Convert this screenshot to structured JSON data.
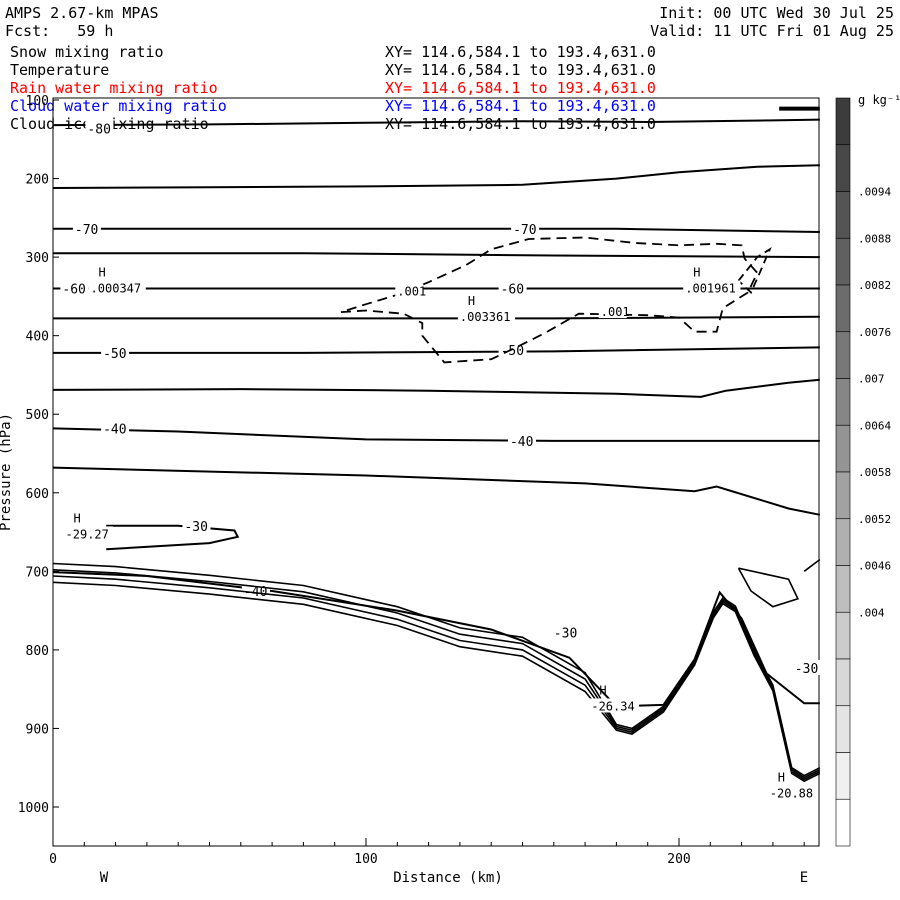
{
  "header": {
    "title": "AMPS 2.67-km MPAS",
    "forecast": "Fcst:   59 h",
    "init": "Init: 00 UTC Wed 30 Jul 25",
    "valid": "Valid: 11 UTC Fri 01 Aug 25"
  },
  "fields": [
    {
      "name": "Snow mixing ratio",
      "xy": "XY= 114.6,584.1 to 193.4,631.0",
      "color": "#000000"
    },
    {
      "name": "Temperature",
      "xy": "XY= 114.6,584.1 to 193.4,631.0",
      "color": "#000000"
    },
    {
      "name": "Rain water mixing ratio",
      "xy": "XY= 114.6,584.1 to 193.4,631.0",
      "color": "#ff0000"
    },
    {
      "name": "Cloud water mixing ratio",
      "xy": "XY= 114.6,584.1 to 193.4,631.0",
      "color": "#0000ff"
    },
    {
      "name": "Cloud ice mixing ratio",
      "xy": "XY= 114.6,584.1 to 193.4,631.0",
      "color": "#000000"
    }
  ],
  "chart_data": {
    "type": "contour cross-section",
    "xlabel": "Distance (km)",
    "ylabel": "Pressure (hPa)",
    "xlim": [
      0,
      245
    ],
    "ylim": [
      100,
      1050
    ],
    "x_ticks": [
      "0",
      "100",
      "200"
    ],
    "y_ticks": [
      "100",
      "200",
      "300",
      "400",
      "500",
      "600",
      "700",
      "800",
      "900",
      "1000"
    ],
    "west_label": "W",
    "east_label": "E",
    "colorbar": {
      "unit": "g kg⁻¹",
      "labels": [
        ".0094",
        ".0088",
        ".0082",
        ".0076",
        ".007",
        ".0064",
        ".0058",
        ".0052",
        ".0046",
        ".004"
      ],
      "shades": [
        "#3c3c3c",
        "#484848",
        "#545454",
        "#606060",
        "#6c6c6c",
        "#787878",
        "#868686",
        "#949494",
        "#a2a2a2",
        "#b0b0b0",
        "#bebebe",
        "#cccccc",
        "#d8d8d8",
        "#e4e4e4",
        "#f0f0f0",
        "#ffffff"
      ]
    },
    "temperature_contours": [
      {
        "label": "-80",
        "points": [
          [
            0,
            132
          ],
          [
            50,
            131
          ],
          [
            100,
            129
          ],
          [
            150,
            127
          ],
          [
            190,
            128
          ],
          [
            230,
            126
          ],
          [
            245,
            125
          ]
        ]
      },
      {
        "label": "",
        "points": [
          [
            0,
            212
          ],
          [
            50,
            211
          ],
          [
            100,
            210
          ],
          [
            150,
            208
          ],
          [
            180,
            200
          ],
          [
            200,
            192
          ],
          [
            225,
            185
          ],
          [
            245,
            183
          ]
        ]
      },
      {
        "label": "-70",
        "points": [
          [
            0,
            264
          ],
          [
            60,
            264
          ],
          [
            120,
            264
          ],
          [
            180,
            264
          ],
          [
            245,
            268
          ]
        ]
      },
      {
        "label": "",
        "points": [
          [
            0,
            295
          ],
          [
            80,
            295
          ],
          [
            160,
            298
          ],
          [
            245,
            300
          ]
        ]
      },
      {
        "label": "-60",
        "points": [
          [
            0,
            340
          ],
          [
            80,
            340
          ],
          [
            160,
            340
          ],
          [
            245,
            340
          ]
        ]
      },
      {
        "label": "",
        "points": [
          [
            0,
            378
          ],
          [
            80,
            378
          ],
          [
            160,
            378
          ],
          [
            245,
            376
          ]
        ]
      },
      {
        "label": "-50",
        "points": [
          [
            0,
            422
          ],
          [
            80,
            422
          ],
          [
            160,
            420
          ],
          [
            245,
            415
          ]
        ]
      },
      {
        "label": "",
        "points": [
          [
            0,
            469
          ],
          [
            60,
            468
          ],
          [
            120,
            470
          ],
          [
            180,
            474
          ],
          [
            207,
            478
          ],
          [
            215,
            470
          ],
          [
            235,
            460
          ],
          [
            245,
            456
          ]
        ]
      },
      {
        "label": "-40",
        "points": [
          [
            0,
            518
          ],
          [
            40,
            522
          ],
          [
            100,
            532
          ],
          [
            160,
            534
          ],
          [
            245,
            534
          ]
        ]
      },
      {
        "label": "",
        "points": [
          [
            0,
            568
          ],
          [
            100,
            578
          ],
          [
            170,
            588
          ],
          [
            205,
            598
          ],
          [
            212,
            592
          ],
          [
            235,
            620
          ],
          [
            245,
            628
          ]
        ]
      },
      {
        "label": "-30",
        "points": [
          [
            17,
            642
          ],
          [
            40,
            642
          ],
          [
            58,
            648
          ],
          [
            59,
            656
          ],
          [
            50,
            664
          ],
          [
            17,
            672
          ]
        ]
      },
      {
        "label": "",
        "points": [
          [
            0,
            701
          ],
          [
            30,
            706
          ],
          [
            70,
            725
          ],
          [
            110,
            750
          ],
          [
            140,
            774
          ],
          [
            165,
            810
          ],
          [
            180,
            872
          ],
          [
            195,
            870
          ],
          [
            205,
            812
          ],
          [
            213,
            727
          ],
          [
            220,
            760
          ],
          [
            228,
            830
          ],
          [
            240,
            868
          ],
          [
            245,
            868
          ]
        ]
      }
    ],
    "highs": [
      {
        "label": "H",
        "value": "-29.27",
        "x": 4,
        "p": 653
      },
      {
        "label": "H",
        "value": "-26.34",
        "x": 172,
        "p": 872
      },
      {
        "label": "H",
        "value": "-20.88",
        "x": 229,
        "p": 983
      },
      {
        "label": "H",
        "value": ".000347",
        "x": 12,
        "p": 340
      },
      {
        "label": "H",
        "value": ".003361",
        "x": 130,
        "p": 376
      },
      {
        "label": "H",
        "value": ".001961",
        "x": 202,
        "p": 340
      }
    ],
    "ice_contour_label": ".001"
  }
}
